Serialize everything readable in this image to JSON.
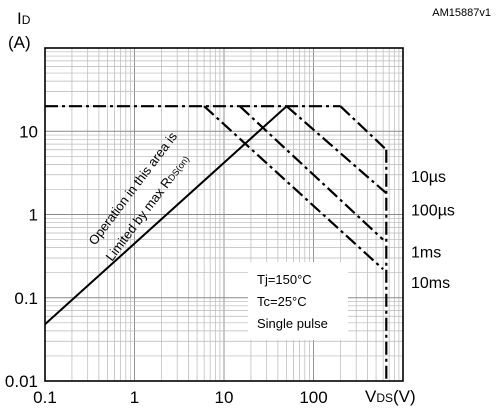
{
  "chart_data": {
    "type": "line",
    "title": "",
    "chart_code": "AM15887v1",
    "ylabel": {
      "main": "I",
      "sub": "D",
      "unit": "(A)"
    },
    "xlabel": {
      "main": "V",
      "sub": "DS",
      "unit": "(V)"
    },
    "x_scale": "log",
    "y_scale": "log",
    "xlim": [
      0.1,
      1000
    ],
    "ylim": [
      0.01,
      100
    ],
    "x_ticks": [
      {
        "value": 0.1,
        "label": "0.1"
      },
      {
        "value": 1,
        "label": "1"
      },
      {
        "value": 10,
        "label": "10"
      },
      {
        "value": 100,
        "label": "100"
      }
    ],
    "y_ticks": [
      {
        "value": 0.01,
        "label": "0.01"
      },
      {
        "value": 0.1,
        "label": "0.1"
      },
      {
        "value": 1,
        "label": "1"
      },
      {
        "value": 10,
        "label": "10"
      }
    ],
    "grid": true,
    "series": [
      {
        "key": "rds_limit",
        "style": "solid",
        "points": [
          [
            0.1,
            0.048
          ],
          [
            50,
            20
          ]
        ]
      },
      {
        "key": "current_limit",
        "style": "dashdot",
        "points": [
          [
            0.1,
            20
          ],
          [
            200,
            20
          ]
        ]
      },
      {
        "key": "p10us",
        "name": "10µs",
        "style": "dashdot",
        "points": [
          [
            200,
            20
          ],
          [
            650,
            6
          ]
        ]
      },
      {
        "key": "p100us",
        "name": "100µs",
        "style": "dashdot",
        "points": [
          [
            50,
            20
          ],
          [
            650,
            1.8
          ]
        ]
      },
      {
        "key": "p1ms",
        "name": "1ms",
        "style": "dashdot",
        "points": [
          [
            15,
            20
          ],
          [
            600,
            0.5
          ]
        ]
      },
      {
        "key": "p10ms",
        "name": "10ms",
        "style": "dashdot",
        "points": [
          [
            6,
            20
          ],
          [
            600,
            0.22
          ]
        ]
      },
      {
        "key": "bvdss",
        "style": "dashdot",
        "points": [
          [
            650,
            6
          ],
          [
            650,
            0.01
          ]
        ]
      }
    ],
    "curve_labels": [
      {
        "series": "p10us",
        "text": "10µs",
        "y": 2.9
      },
      {
        "series": "p100us",
        "text": "100µs",
        "y": 1.15
      },
      {
        "series": "p1ms",
        "text": "1ms",
        "y": 0.36
      },
      {
        "series": "p10ms",
        "text": "10ms",
        "y": 0.155
      }
    ],
    "rds_annotation": {
      "line1": "Operation in this area is",
      "line2_main": "Limited by max R",
      "line2_sub": "DS(on)"
    },
    "conditions": [
      "Tj=150°C",
      "Tc=25°C",
      "Single pulse"
    ]
  }
}
